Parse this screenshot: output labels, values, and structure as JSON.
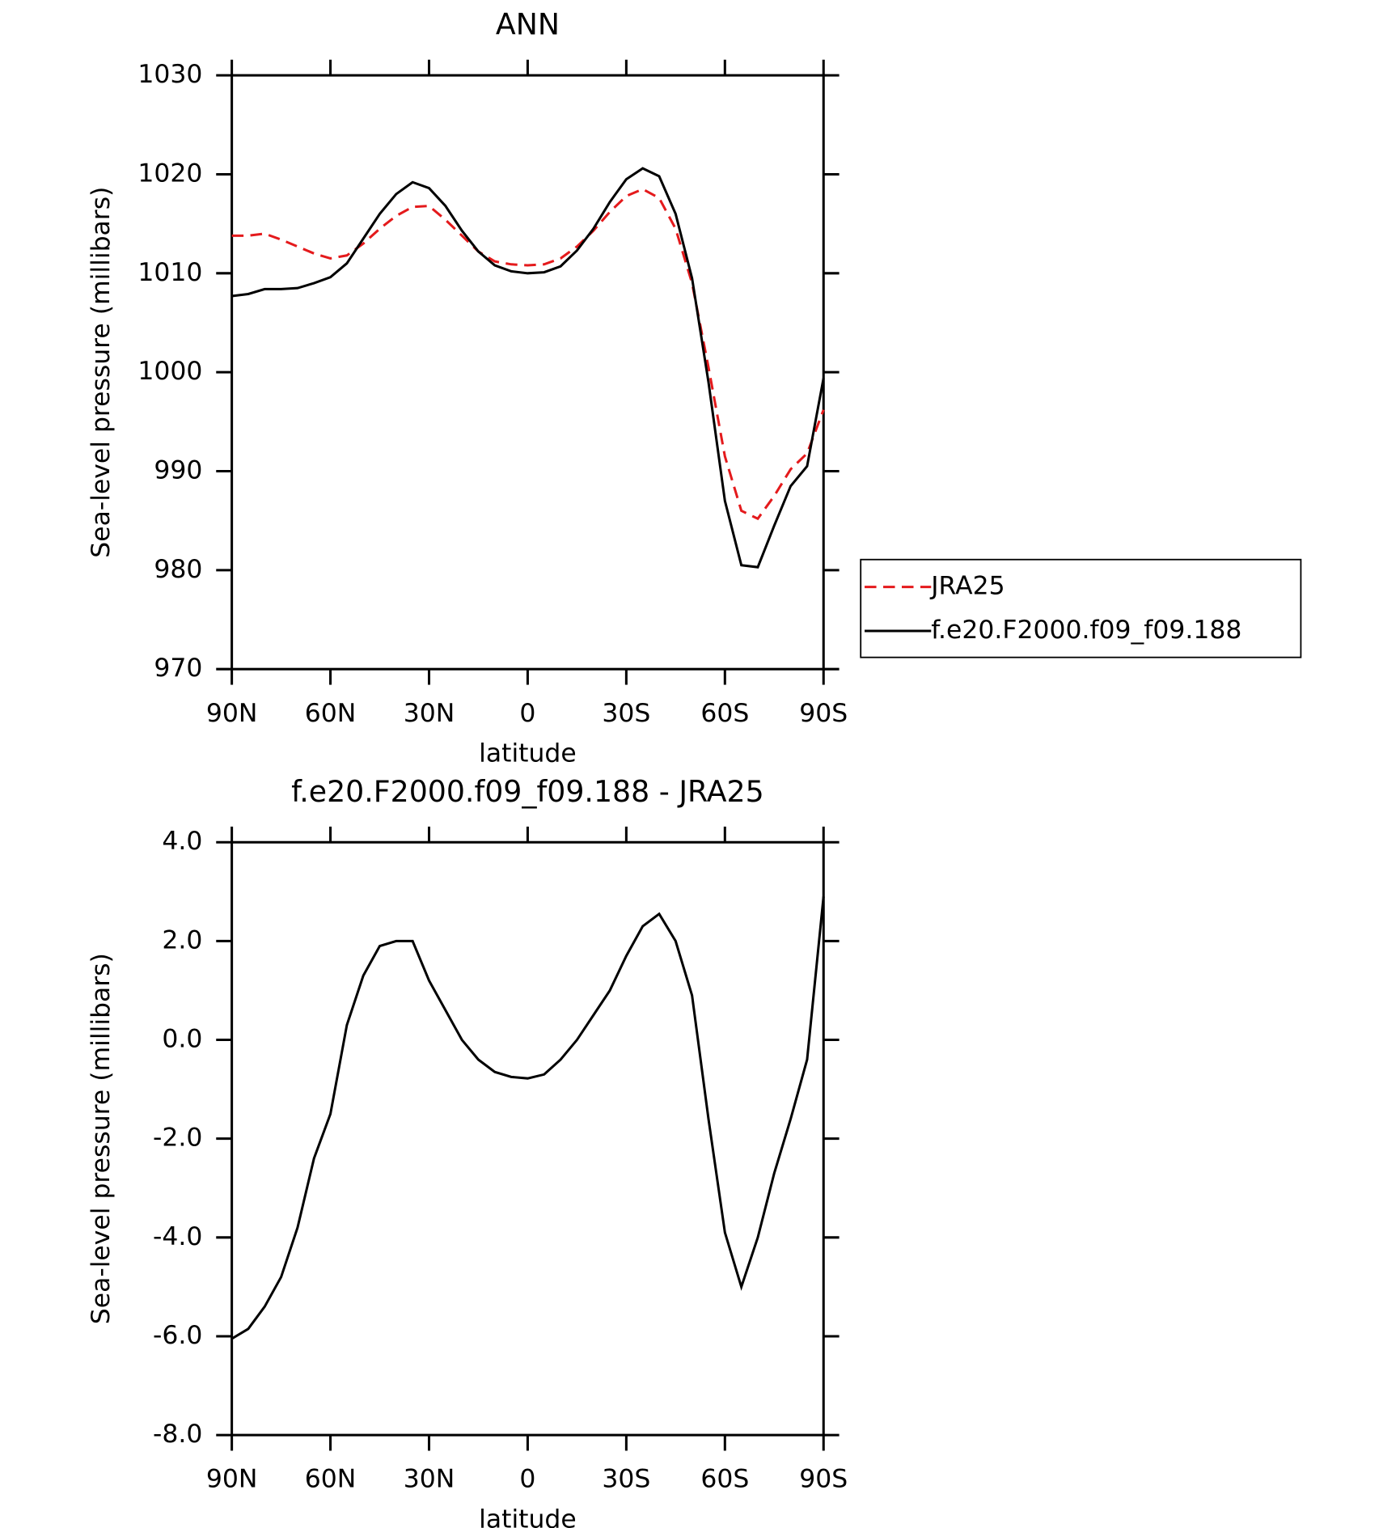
{
  "chart_data": [
    {
      "type": "line",
      "title": "ANN",
      "xlabel": "latitude",
      "ylabel": "Sea-level pressure (millibars)",
      "xlim": [
        90,
        -90
      ],
      "ylim": [
        970,
        1030
      ],
      "xticks": [
        {
          "value": 90,
          "label": "90N"
        },
        {
          "value": 60,
          "label": "60N"
        },
        {
          "value": 30,
          "label": "30N"
        },
        0,
        {
          "value": -30,
          "label": "30S"
        },
        {
          "value": -60,
          "label": "60S"
        },
        {
          "value": -90,
          "label": "90S"
        }
      ],
      "yticks": [
        970,
        980,
        990,
        1000,
        1010,
        1020,
        1030
      ],
      "legend": "right",
      "x": [
        90,
        85,
        80,
        75,
        70,
        65,
        60,
        55,
        50,
        45,
        40,
        35,
        30,
        25,
        20,
        15,
        10,
        5,
        0,
        -5,
        -10,
        -15,
        -20,
        -25,
        -30,
        -35,
        -40,
        -45,
        -50,
        -55,
        -60,
        -65,
        -70,
        -75,
        -80,
        -85,
        -90
      ],
      "series": [
        {
          "name": "JRA25",
          "color": "#e41a1c",
          "dash": true,
          "values": [
            1013.8,
            1013.8,
            1014.0,
            1013.4,
            1012.7,
            1012.0,
            1011.5,
            1011.8,
            1013.0,
            1014.5,
            1015.8,
            1016.7,
            1016.8,
            1015.4,
            1013.8,
            1012.2,
            1011.2,
            1010.9,
            1010.8,
            1010.9,
            1011.5,
            1012.7,
            1014.3,
            1016.2,
            1017.8,
            1018.5,
            1017.6,
            1014.5,
            1009.0,
            1000.5,
            991.5,
            986.0,
            985.2,
            987.5,
            990.2,
            991.8,
            996.2
          ]
        },
        {
          "name": "f.e20.F2000.f09_f09.188",
          "color": "#000000",
          "dash": false,
          "values": [
            1007.7,
            1007.9,
            1008.4,
            1008.4,
            1008.5,
            1009.0,
            1009.6,
            1011.0,
            1013.5,
            1016.0,
            1018.0,
            1019.2,
            1018.6,
            1016.8,
            1014.3,
            1012.2,
            1010.8,
            1010.2,
            1010.0,
            1010.1,
            1010.7,
            1012.3,
            1014.5,
            1017.2,
            1019.5,
            1020.6,
            1019.8,
            1016.0,
            1009.5,
            999.0,
            987.0,
            980.5,
            980.3,
            984.5,
            988.5,
            990.5,
            999.4
          ]
        }
      ]
    },
    {
      "type": "line",
      "title": "f.e20.F2000.f09_f09.188 - JRA25",
      "xlabel": "latitude",
      "ylabel": "Sea-level pressure (millibars)",
      "xlim": [
        90,
        -90
      ],
      "ylim": [
        -8,
        4
      ],
      "xticks": [
        {
          "value": 90,
          "label": "90N"
        },
        {
          "value": 60,
          "label": "60N"
        },
        {
          "value": 30,
          "label": "30N"
        },
        0,
        {
          "value": -30,
          "label": "30S"
        },
        {
          "value": -60,
          "label": "60S"
        },
        {
          "value": -90,
          "label": "90S"
        }
      ],
      "yticks": [
        {
          "value": -8,
          "label": "-8.0"
        },
        {
          "value": -6,
          "label": "-6.0"
        },
        {
          "value": -4,
          "label": "-4.0"
        },
        {
          "value": -2,
          "label": "-2.0"
        },
        {
          "value": 0,
          "label": "0.0"
        },
        {
          "value": 2,
          "label": "2.0"
        },
        {
          "value": 4,
          "label": "4.0"
        }
      ],
      "x": [
        90,
        85,
        80,
        75,
        70,
        65,
        60,
        55,
        50,
        45,
        40,
        35,
        30,
        25,
        20,
        15,
        10,
        5,
        0,
        -5,
        -10,
        -15,
        -20,
        -25,
        -30,
        -35,
        -40,
        -45,
        -50,
        -55,
        -60,
        -65,
        -70,
        -75,
        -80,
        -85,
        -90
      ],
      "series": [
        {
          "color": "#000000",
          "values": [
            -6.05,
            -5.85,
            -5.4,
            -4.8,
            -3.8,
            -2.4,
            -1.5,
            0.3,
            1.3,
            1.9,
            2.0,
            2.0,
            1.2,
            0.6,
            0.0,
            -0.4,
            -0.65,
            -0.75,
            -0.78,
            -0.7,
            -0.4,
            0.0,
            0.5,
            1.0,
            1.7,
            2.3,
            2.55,
            2.0,
            0.9,
            -1.6,
            -3.9,
            -5.0,
            -4.0,
            -2.7,
            -1.6,
            -0.4,
            2.9
          ]
        }
      ]
    }
  ]
}
